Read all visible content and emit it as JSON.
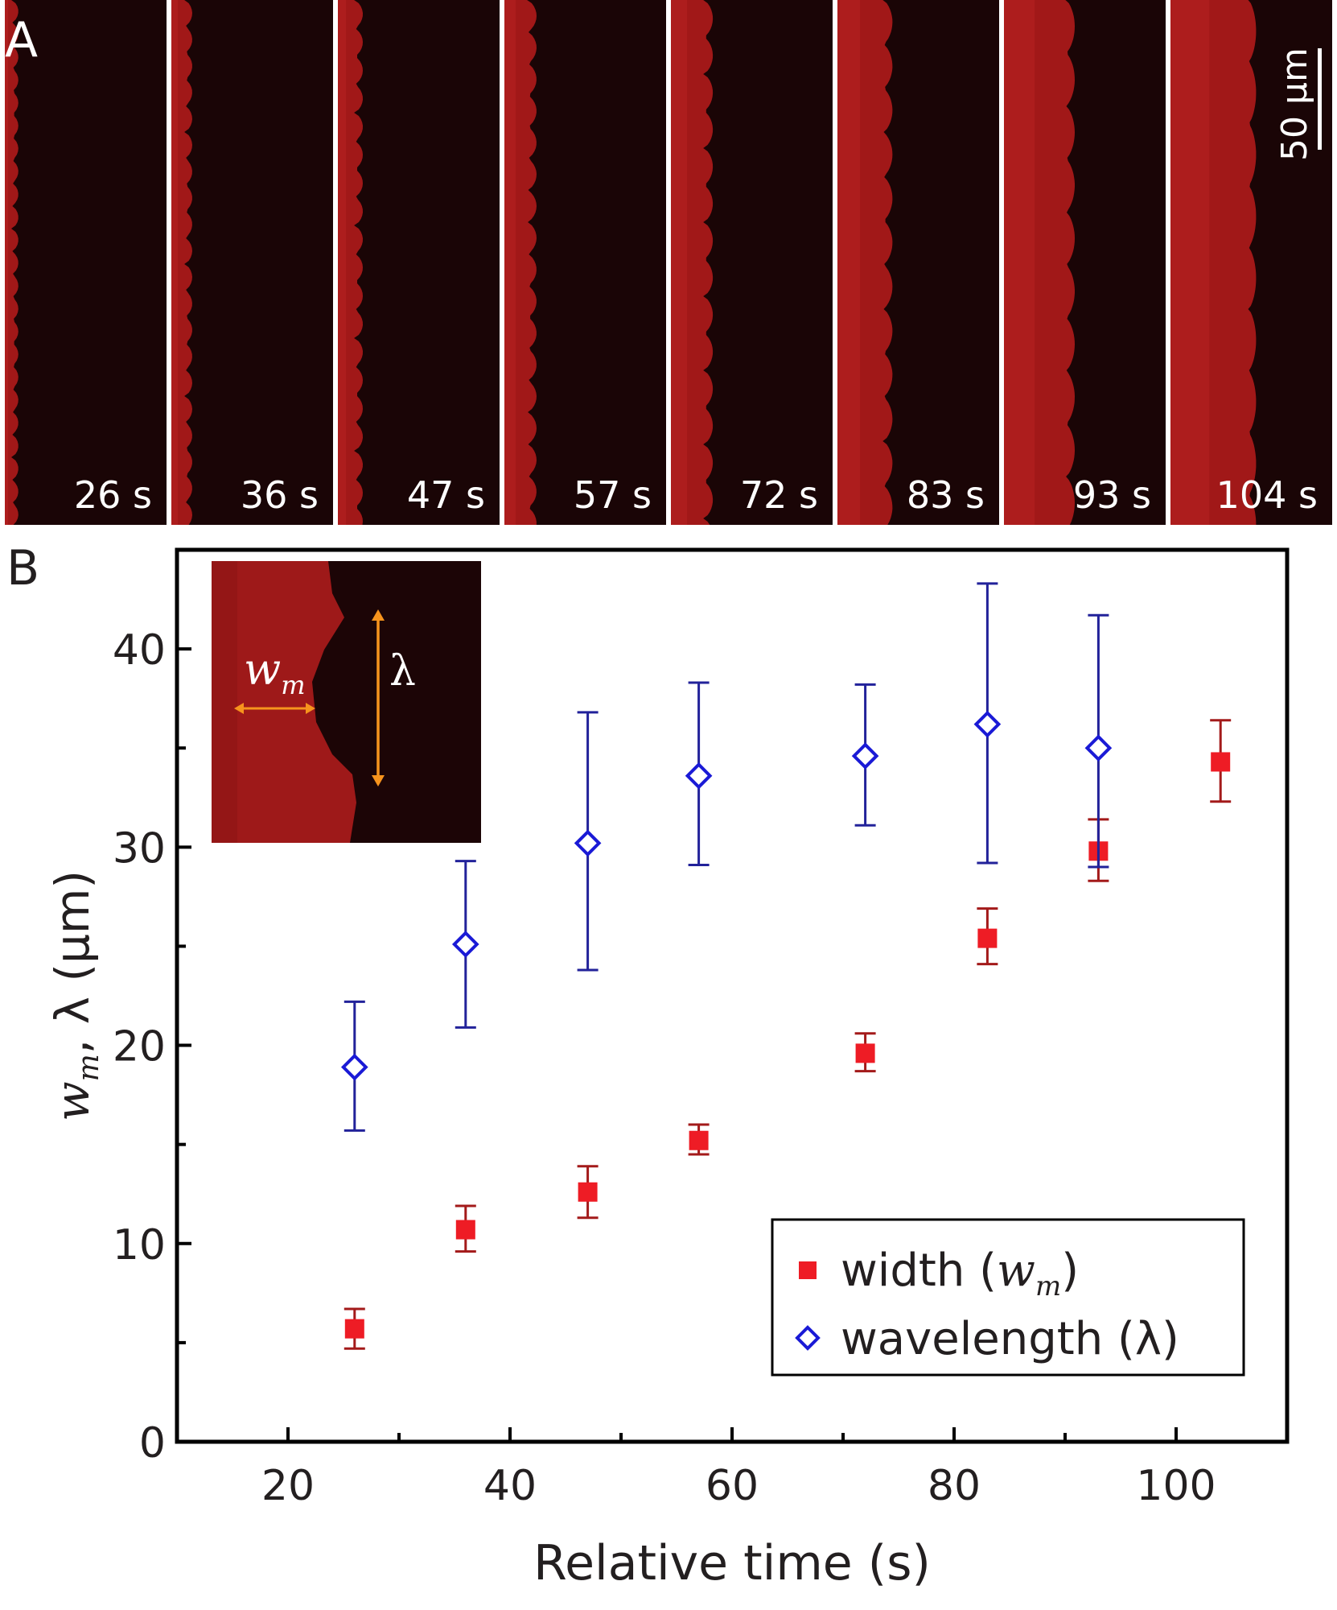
{
  "panel_labels": {
    "a": "A",
    "b": "B"
  },
  "panel_a": {
    "frames": [
      {
        "time": "26 s",
        "band_width": 0.04,
        "ripple": 0.35
      },
      {
        "time": "36 s",
        "band_width": 0.08,
        "ripple": 0.45
      },
      {
        "time": "47 s",
        "band_width": 0.1,
        "ripple": 0.55
      },
      {
        "time": "57 s",
        "band_width": 0.14,
        "ripple": 0.6
      },
      {
        "time": "72 s",
        "band_width": 0.2,
        "ripple": 0.55
      },
      {
        "time": "83 s",
        "band_width": 0.28,
        "ripple": 0.5
      },
      {
        "time": "93 s",
        "band_width": 0.38,
        "ripple": 0.4
      },
      {
        "time": "104 s",
        "band_width": 0.48,
        "ripple": 0.25
      }
    ],
    "scale_bar_label": "50 μm"
  },
  "inset": {
    "w_label": "w",
    "w_sub": "m",
    "lambda_label": "λ"
  },
  "colors": {
    "width": "#ee1c25",
    "width_err": "#a31a1a",
    "wavelength": "#1a1ad6",
    "wavelength_err": "#22229a",
    "axis": "#000000",
    "tick_text": "#231f20",
    "inset_arrow": "#f7941d",
    "frame_bg": "#1a0506",
    "frame_band": "#c81e1e"
  },
  "chart_data": {
    "type": "scatter",
    "title": "",
    "xlabel": "Relative time (s)",
    "ylabel": "w_m, λ (μm)",
    "ylabel_parts": {
      "w": "w",
      "sub": "m",
      "rest": ", λ (μm)"
    },
    "xlim": [
      10,
      110
    ],
    "ylim": [
      0,
      45
    ],
    "x_ticks": [
      20,
      40,
      60,
      80,
      100
    ],
    "x_minor_ticks": [
      30,
      50,
      70,
      90
    ],
    "y_ticks": [
      0,
      10,
      20,
      30,
      40
    ],
    "y_minor_ticks": [
      5,
      15,
      25,
      35
    ],
    "series": [
      {
        "name": "width (w_m)",
        "legend_text": "width (",
        "legend_w": "w",
        "legend_sub": "m",
        "legend_close": ")",
        "marker": "filled-square",
        "x": [
          26,
          36,
          47,
          57,
          72,
          83,
          93,
          104
        ],
        "y": [
          5.7,
          10.7,
          12.6,
          15.2,
          19.6,
          25.4,
          29.8,
          34.3
        ],
        "err_low": [
          1.0,
          1.1,
          1.3,
          0.7,
          0.9,
          1.3,
          1.5,
          2.0
        ],
        "err_high": [
          1.0,
          1.2,
          1.3,
          0.8,
          1.0,
          1.5,
          1.6,
          2.1
        ]
      },
      {
        "name": "wavelength (λ)",
        "legend_text": "wavelength (λ)",
        "marker": "open-diamond",
        "x": [
          26,
          36,
          47,
          57,
          72,
          83,
          93
        ],
        "y": [
          18.9,
          25.1,
          30.2,
          33.6,
          34.6,
          36.2,
          35.0
        ],
        "err_low": [
          3.2,
          4.2,
          6.4,
          4.5,
          3.5,
          7.0,
          6.0
        ],
        "err_high": [
          3.3,
          4.2,
          6.6,
          4.7,
          3.6,
          7.1,
          6.7
        ]
      }
    ],
    "legend_position": "bottom-right"
  }
}
